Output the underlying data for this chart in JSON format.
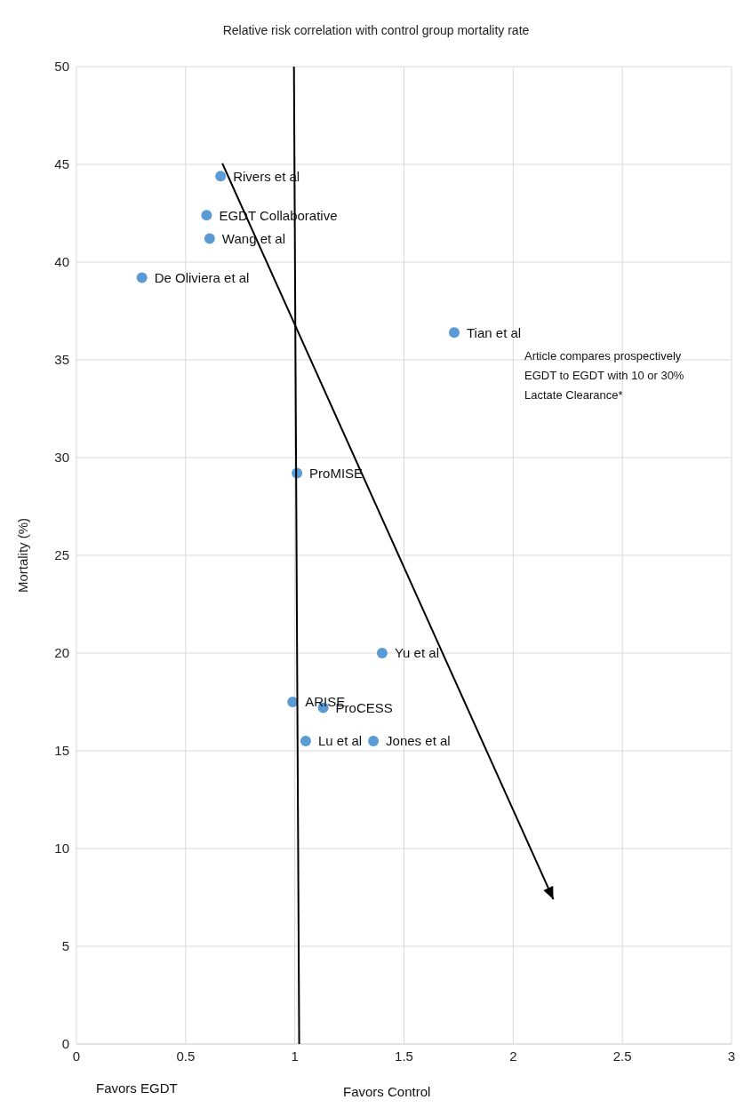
{
  "chart_data": {
    "type": "scatter",
    "title": "Relative risk correlation with control group mortality rate",
    "ylabel": "Mortality (%)",
    "xlim": [
      0,
      3
    ],
    "xticks": [
      0,
      0.5,
      1,
      1.5,
      2,
      2.5,
      3
    ],
    "ylim": [
      0,
      50
    ],
    "yticks": [
      0,
      5,
      10,
      15,
      20,
      25,
      30,
      35,
      40,
      45,
      50
    ],
    "grid": true,
    "legend": false,
    "marker": "circle",
    "series": [
      {
        "color": "#5b9bd5",
        "x": [
          0.66,
          0.596,
          0.61,
          0.3,
          1.73,
          1.01,
          1.4,
          0.99,
          1.13,
          1.05,
          1.36
        ],
        "values": [
          44.4,
          42.4,
          41.2,
          39.2,
          36.4,
          29.2,
          20.0,
          17.5,
          17.2,
          15.5,
          15.5
        ]
      },
      {
        "type": "line",
        "marker": "none",
        "color": "#000000",
        "x": [
          0.996,
          1.02
        ],
        "values": [
          50,
          0
        ]
      }
    ],
    "annotations": [
      {
        "text": "Rivers et al",
        "x": 0.66,
        "y": 44.4
      },
      {
        "text": "EGDT Collaborative",
        "x": 0.596,
        "y": 42.4
      },
      {
        "text": "Wang et al",
        "x": 0.61,
        "y": 41.2
      },
      {
        "text": "De Oliviera et al",
        "x": 0.3,
        "y": 39.2
      },
      {
        "text": "Tian et al",
        "x": 1.73,
        "y": 36.4
      },
      {
        "text": "ProMISE",
        "x": 1.01,
        "y": 29.2
      },
      {
        "text": "Yu et al",
        "x": 1.4,
        "y": 20.0
      },
      {
        "text": "ARISE",
        "x": 0.99,
        "y": 17.5
      },
      {
        "text": "ProCESS",
        "x": 1.13,
        "y": 17.2
      },
      {
        "text": "Lu et al",
        "x": 1.05,
        "y": 15.5
      },
      {
        "text": "Jones et al",
        "x": 1.36,
        "y": 15.5
      },
      "Article compares prospectively EGDT to EGDT with 10 or 30% Lactate Clearance*",
      "Favors EGDT",
      "Favors Control"
    ]
  }
}
